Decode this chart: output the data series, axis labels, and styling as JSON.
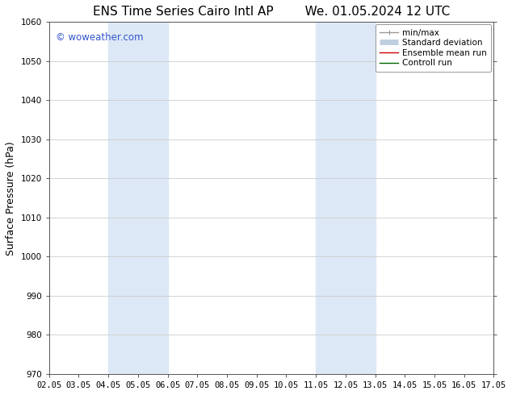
{
  "title_left": "ENS Time Series Cairo Intl AP",
  "title_right": "We. 01.05.2024 12 UTC",
  "ylabel": "Surface Pressure (hPa)",
  "xlabel": "",
  "ylim": [
    970,
    1060
  ],
  "yticks": [
    970,
    980,
    990,
    1000,
    1010,
    1020,
    1030,
    1040,
    1050,
    1060
  ],
  "xtick_labels": [
    "02.05",
    "03.05",
    "04.05",
    "05.05",
    "06.05",
    "07.05",
    "08.05",
    "09.05",
    "10.05",
    "11.05",
    "12.05",
    "13.05",
    "14.05",
    "15.05",
    "16.05",
    "17.05"
  ],
  "xtick_values": [
    0,
    1,
    2,
    3,
    4,
    5,
    6,
    7,
    8,
    9,
    10,
    11,
    12,
    13,
    14,
    15
  ],
  "shaded_regions": [
    {
      "xmin": 2.0,
      "xmax": 4.0,
      "color": "#dce8f5"
    },
    {
      "xmin": 9.0,
      "xmax": 11.0,
      "color": "#dce8f5"
    }
  ],
  "watermark_text": "© woweather.com",
  "watermark_color": "#3355cc",
  "background_color": "#ffffff",
  "plot_bg_color": "#ffffff",
  "grid_color": "#cccccc",
  "legend_items": [
    {
      "label": "min/max",
      "color": "#999999",
      "lw": 1.0
    },
    {
      "label": "Standard deviation",
      "color": "#c0cfe0",
      "lw": 5
    },
    {
      "label": "Ensemble mean run",
      "color": "#cc0000",
      "lw": 1.0
    },
    {
      "label": "Controll run",
      "color": "#006600",
      "lw": 1.0
    }
  ],
  "title_fontsize": 11,
  "axis_label_fontsize": 9,
  "tick_fontsize": 7.5,
  "legend_fontsize": 7.5,
  "watermark_fontsize": 8.5
}
